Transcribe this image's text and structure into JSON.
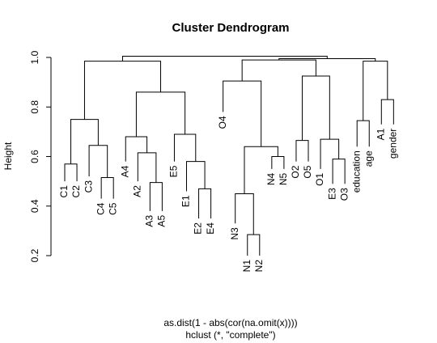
{
  "chart_data": {
    "type": "dendrogram",
    "title": "Cluster Dendrogram",
    "ylabel": "Height",
    "xlabel_lines": [
      "as.dist(1 - abs(cor(na.omit(x))))",
      "hclust (*, \"complete\")"
    ],
    "ylim": [
      0.2,
      1.0
    ],
    "yticks": [
      0.2,
      0.4,
      0.6,
      0.8,
      1.0
    ],
    "ytick_labels": [
      "0.2",
      "0.4",
      "0.6",
      "0.8",
      "1.0"
    ],
    "leaves": [
      "C1",
      "C2",
      "C3",
      "C4",
      "C5",
      "A4",
      "A2",
      "A3",
      "A5",
      "E5",
      "E1",
      "E2",
      "E4",
      "O4",
      "N3",
      "N1",
      "N2",
      "N4",
      "N5",
      "O2",
      "O5",
      "O1",
      "E3",
      "O3",
      "education",
      "age",
      "A1",
      "gender"
    ],
    "merges": [
      {
        "id": "m1",
        "left": "C1",
        "right": "C2",
        "height": 0.57
      },
      {
        "id": "m2",
        "left": "C4",
        "right": "C5",
        "height": 0.515
      },
      {
        "id": "m3",
        "left": "C3",
        "right": "m2",
        "height": 0.645
      },
      {
        "id": "m4",
        "left": "m1",
        "right": "m3",
        "height": 0.75
      },
      {
        "id": "m5",
        "left": "A3",
        "right": "A5",
        "height": 0.495
      },
      {
        "id": "m6",
        "left": "A2",
        "right": "m5",
        "height": 0.615
      },
      {
        "id": "m7",
        "left": "A4",
        "right": "m6",
        "height": 0.68
      },
      {
        "id": "m8",
        "left": "E2",
        "right": "E4",
        "height": 0.47
      },
      {
        "id": "m9",
        "left": "E1",
        "right": "m8",
        "height": 0.58
      },
      {
        "id": "m10",
        "left": "E5",
        "right": "m9",
        "height": 0.69
      },
      {
        "id": "m11",
        "left": "m7",
        "right": "m10",
        "height": 0.86
      },
      {
        "id": "m12",
        "left": "m4",
        "right": "m11",
        "height": 0.985
      },
      {
        "id": "m13",
        "left": "N1",
        "right": "N2",
        "height": 0.285
      },
      {
        "id": "m14",
        "left": "N3",
        "right": "m13",
        "height": 0.45
      },
      {
        "id": "m15",
        "left": "N4",
        "right": "N5",
        "height": 0.6
      },
      {
        "id": "m16",
        "left": "m14",
        "right": "m15",
        "height": 0.64
      },
      {
        "id": "m17",
        "left": "O4",
        "right": "m16",
        "height": 0.905
      },
      {
        "id": "m18",
        "left": "O2",
        "right": "O5",
        "height": 0.665
      },
      {
        "id": "m19",
        "left": "E3",
        "right": "O3",
        "height": 0.59
      },
      {
        "id": "m20",
        "left": "O1",
        "right": "m19",
        "height": 0.67
      },
      {
        "id": "m21",
        "left": "m18",
        "right": "m20",
        "height": 0.925
      },
      {
        "id": "m22",
        "left": "m17",
        "right": "m21",
        "height": 0.99
      },
      {
        "id": "m23",
        "left": "education",
        "right": "age",
        "height": 0.745
      },
      {
        "id": "m24",
        "left": "A1",
        "right": "gender",
        "height": 0.83
      },
      {
        "id": "m25",
        "left": "m23",
        "right": "m24",
        "height": 0.985
      },
      {
        "id": "m26",
        "left": "m22",
        "right": "m25",
        "height": 0.995
      },
      {
        "id": "m27",
        "left": "m12",
        "right": "m26",
        "height": 1.005
      }
    ],
    "leaf_heights": {
      "C1": 0.5,
      "C2": 0.5,
      "C3": 0.52,
      "C4": 0.43,
      "C5": 0.43,
      "A4": 0.58,
      "A2": 0.5,
      "A3": 0.38,
      "A5": 0.38,
      "E5": 0.58,
      "E1": 0.46,
      "E2": 0.35,
      "E4": 0.35,
      "O4": 0.78,
      "N3": 0.33,
      "N1": 0.2,
      "N2": 0.2,
      "N4": 0.55,
      "N5": 0.55,
      "O2": 0.58,
      "O5": 0.58,
      "O1": 0.55,
      "E3": 0.49,
      "O3": 0.49,
      "education": 0.64,
      "age": 0.64,
      "A1": 0.73,
      "gender": 0.73
    }
  }
}
